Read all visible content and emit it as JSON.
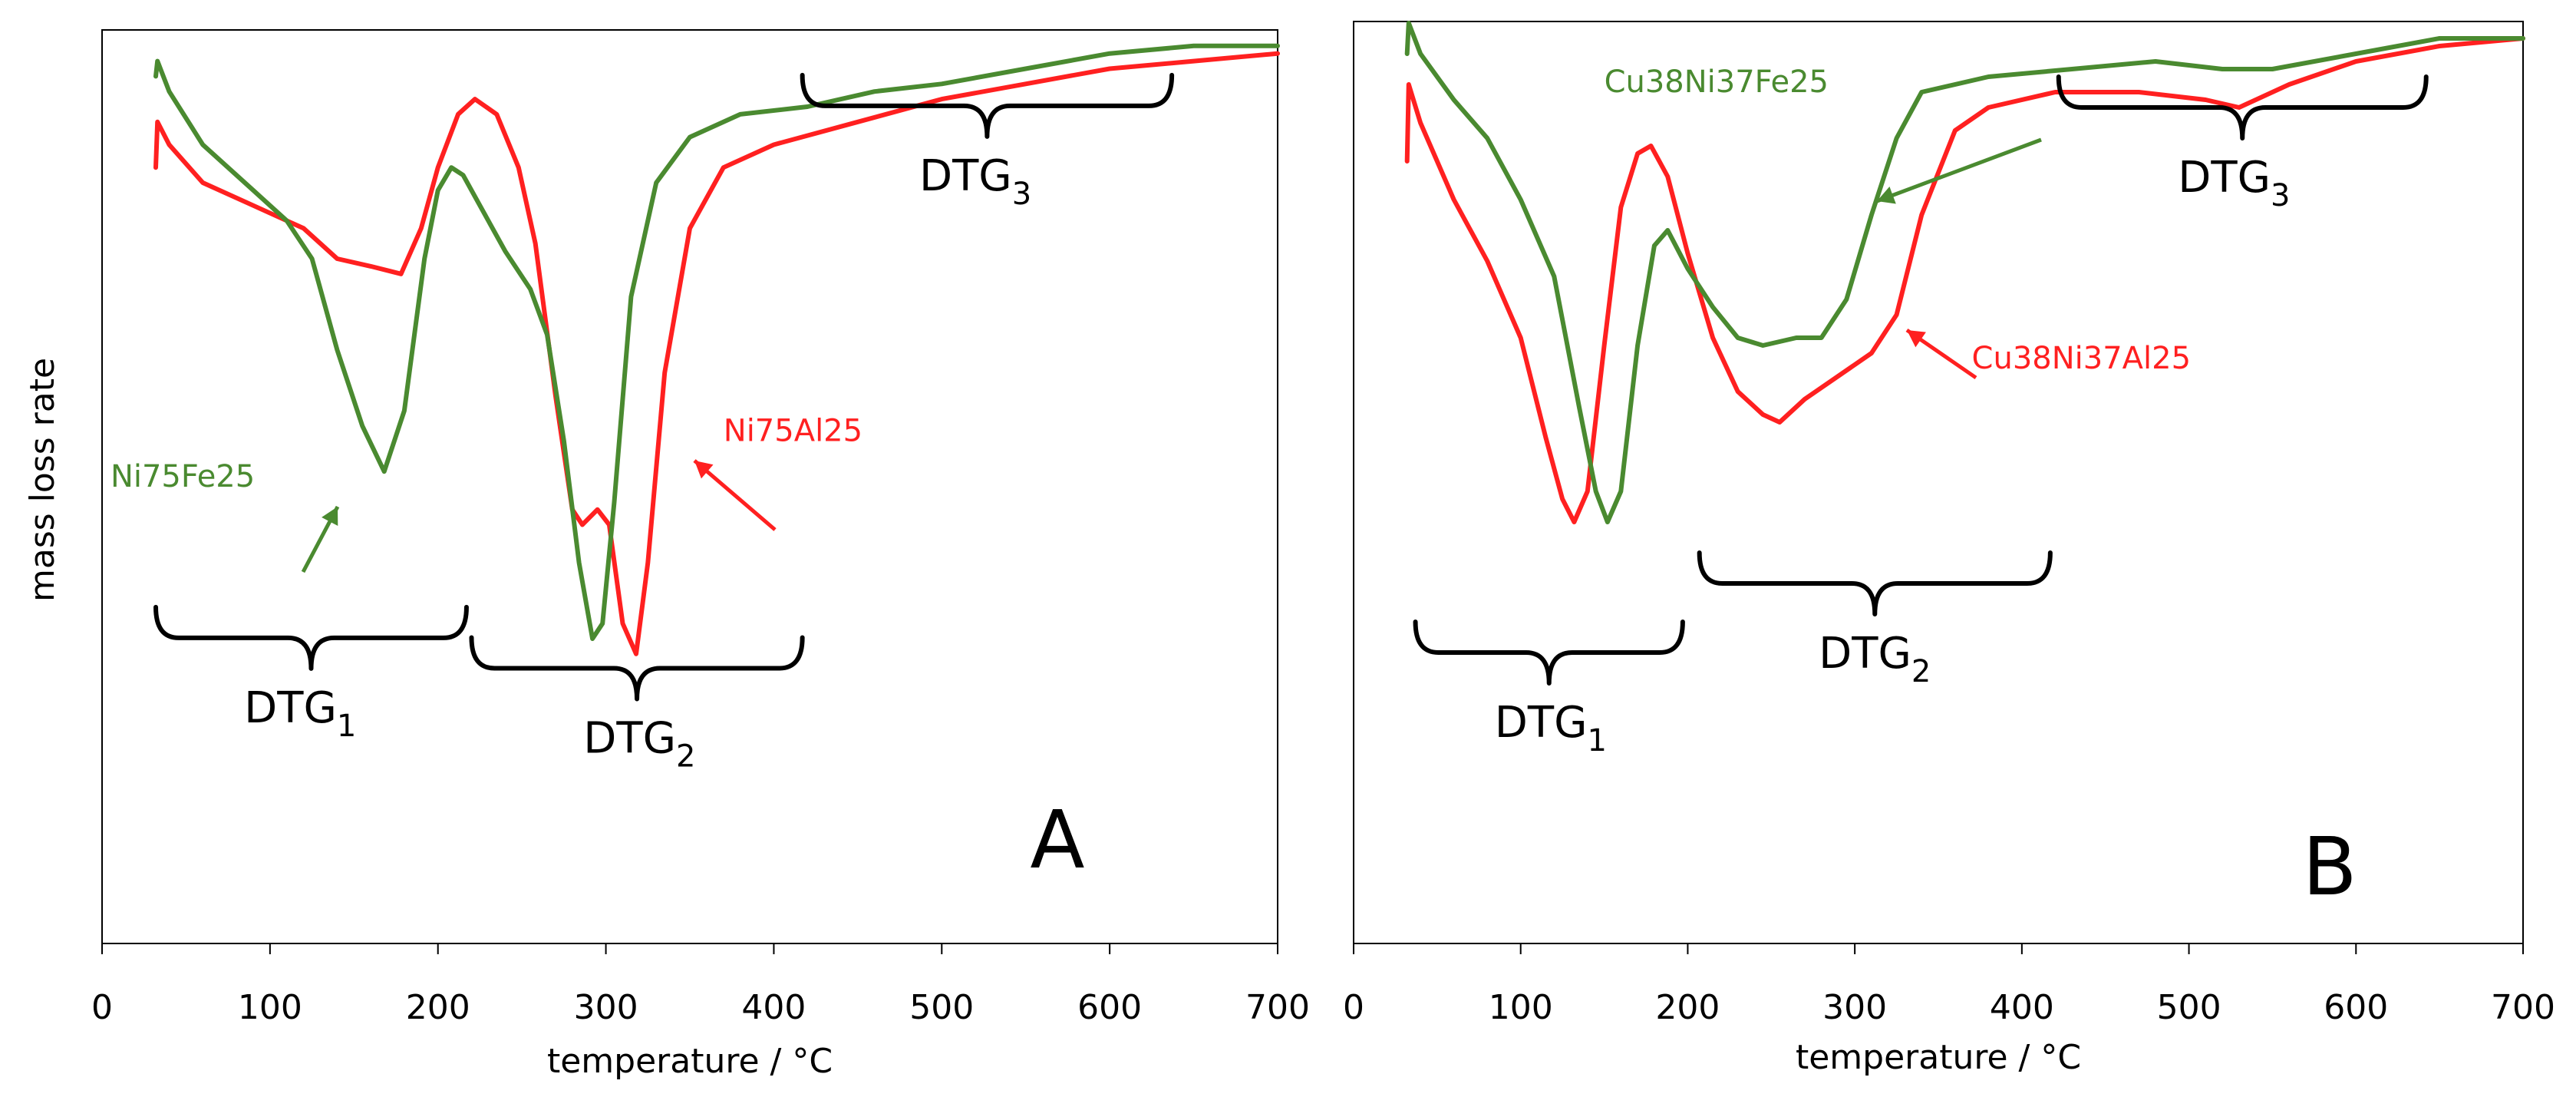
{
  "chart_data": [
    {
      "type": "line",
      "panel_letter": "A",
      "xlabel": "temperature / °C",
      "ylabel": "mass loss rate",
      "xlim": [
        0,
        700
      ],
      "ylim": [
        0,
        100
      ],
      "xticks": [
        "0",
        "100",
        "200",
        "300",
        "400",
        "500",
        "600",
        "700"
      ],
      "series": [
        {
          "name": "Ni75Al25",
          "color": "#ff2020",
          "points": [
            [
              32,
              82
            ],
            [
              33,
              88
            ],
            [
              40,
              85
            ],
            [
              60,
              80
            ],
            [
              90,
              77
            ],
            [
              120,
              74
            ],
            [
              140,
              70
            ],
            [
              160,
              69
            ],
            [
              178,
              68
            ],
            [
              190,
              74
            ],
            [
              200,
              82
            ],
            [
              212,
              89
            ],
            [
              222,
              91
            ],
            [
              235,
              89
            ],
            [
              248,
              82
            ],
            [
              258,
              72
            ],
            [
              270,
              52
            ],
            [
              280,
              37
            ],
            [
              286,
              35
            ],
            [
              295,
              37
            ],
            [
              302,
              35
            ],
            [
              310,
              22
            ],
            [
              318,
              18
            ],
            [
              325,
              30
            ],
            [
              335,
              55
            ],
            [
              350,
              74
            ],
            [
              370,
              82
            ],
            [
              400,
              85
            ],
            [
              450,
              88
            ],
            [
              500,
              91
            ],
            [
              550,
              93
            ],
            [
              600,
              95
            ],
            [
              650,
              96
            ],
            [
              700,
              97
            ]
          ]
        },
        {
          "name": "Ni75Fe25",
          "color": "#4a8a30",
          "points": [
            [
              32,
              94
            ],
            [
              33,
              96
            ],
            [
              40,
              92
            ],
            [
              60,
              85
            ],
            [
              90,
              79
            ],
            [
              110,
              75
            ],
            [
              125,
              70
            ],
            [
              140,
              58
            ],
            [
              155,
              48
            ],
            [
              168,
              42
            ],
            [
              180,
              50
            ],
            [
              192,
              70
            ],
            [
              200,
              79
            ],
            [
              208,
              82
            ],
            [
              215,
              81
            ],
            [
              225,
              77
            ],
            [
              240,
              71
            ],
            [
              255,
              66
            ],
            [
              265,
              60
            ],
            [
              275,
              46
            ],
            [
              284,
              30
            ],
            [
              292,
              20
            ],
            [
              298,
              22
            ],
            [
              305,
              38
            ],
            [
              315,
              65
            ],
            [
              330,
              80
            ],
            [
              350,
              86
            ],
            [
              380,
              89
            ],
            [
              420,
              90
            ],
            [
              460,
              92
            ],
            [
              500,
              93
            ],
            [
              550,
              95
            ],
            [
              600,
              97
            ],
            [
              650,
              98
            ],
            [
              700,
              98
            ]
          ]
        }
      ],
      "series_labels": [
        {
          "name": "Ni75Fe25",
          "color": "#4a8a30",
          "x": 5,
          "y": 40
        },
        {
          "name": "Ni75Al25",
          "color": "#ff2020",
          "x": 370,
          "y": 46
        }
      ],
      "regions": [
        {
          "label": "DTG",
          "subscript": "1",
          "from": 32,
          "to": 217,
          "orientation": "down",
          "label_x": 118,
          "label_y": 9
        },
        {
          "label": "DTG",
          "subscript": "2",
          "from": 220,
          "to": 417,
          "orientation": "down",
          "label_x": 320,
          "label_y": 5
        },
        {
          "label": "DTG",
          "subscript": "3",
          "from": 417,
          "to": 637,
          "orientation": "down",
          "label_x": 520,
          "label_y": 79
        }
      ]
    },
    {
      "type": "line",
      "panel_letter": "B",
      "xlabel": "temperature / °C",
      "ylabel": "",
      "xlim": [
        0,
        700
      ],
      "ylim": [
        0,
        100
      ],
      "xticks": [
        "0",
        "100",
        "200",
        "300",
        "400",
        "500",
        "600",
        "700"
      ],
      "series": [
        {
          "name": "Cu38Ni37Al25",
          "color": "#ff2020",
          "points": [
            [
              32,
              82
            ],
            [
              33,
              92
            ],
            [
              40,
              87
            ],
            [
              60,
              77
            ],
            [
              80,
              69
            ],
            [
              100,
              59
            ],
            [
              115,
              46
            ],
            [
              125,
              38
            ],
            [
              132,
              35
            ],
            [
              140,
              39
            ],
            [
              150,
              58
            ],
            [
              160,
              76
            ],
            [
              170,
              83
            ],
            [
              178,
              84
            ],
            [
              188,
              80
            ],
            [
              200,
              70
            ],
            [
              215,
              59
            ],
            [
              230,
              52
            ],
            [
              245,
              49
            ],
            [
              255,
              48
            ],
            [
              270,
              51
            ],
            [
              290,
              54
            ],
            [
              310,
              57
            ],
            [
              325,
              62
            ],
            [
              340,
              75
            ],
            [
              360,
              86
            ],
            [
              380,
              89
            ],
            [
              420,
              91
            ],
            [
              470,
              91
            ],
            [
              510,
              90
            ],
            [
              530,
              89
            ],
            [
              560,
              92
            ],
            [
              600,
              95
            ],
            [
              650,
              97
            ],
            [
              700,
              98
            ]
          ]
        },
        {
          "name": "Cu38Ni37Fe25",
          "color": "#4a8a30",
          "points": [
            [
              32,
              96
            ],
            [
              33,
              100
            ],
            [
              40,
              96
            ],
            [
              60,
              90
            ],
            [
              80,
              85
            ],
            [
              100,
              77
            ],
            [
              120,
              67
            ],
            [
              135,
              50
            ],
            [
              145,
              39
            ],
            [
              152,
              35
            ],
            [
              160,
              39
            ],
            [
              170,
              58
            ],
            [
              180,
              71
            ],
            [
              188,
              73
            ],
            [
              200,
              68
            ],
            [
              215,
              63
            ],
            [
              230,
              59
            ],
            [
              245,
              58
            ],
            [
              265,
              59
            ],
            [
              280,
              59
            ],
            [
              295,
              64
            ],
            [
              310,
              75
            ],
            [
              325,
              85
            ],
            [
              340,
              91
            ],
            [
              380,
              93
            ],
            [
              430,
              94
            ],
            [
              480,
              95
            ],
            [
              520,
              94
            ],
            [
              550,
              94
            ],
            [
              600,
              96
            ],
            [
              650,
              98
            ],
            [
              700,
              98
            ]
          ]
        }
      ],
      "series_labels": [
        {
          "name": "Cu38Ni37Fe25",
          "color": "#4a8a30",
          "x": 150,
          "y": 91
        },
        {
          "name": "Cu38Ni37Al25",
          "color": "#ff2020",
          "x": 370,
          "y": 55
        }
      ],
      "regions": [
        {
          "label": "DTG",
          "subscript": "1",
          "from": 37,
          "to": 197,
          "orientation": "down",
          "label_x": 118,
          "label_y": 7
        },
        {
          "label": "DTG",
          "subscript": "2",
          "from": 207,
          "to": 417,
          "orientation": "down",
          "label_x": 312,
          "label_y": 16
        },
        {
          "label": "DTG",
          "subscript": "3",
          "from": 422,
          "to": 642,
          "orientation": "down",
          "label_x": 527,
          "label_y": 78
        }
      ]
    }
  ]
}
